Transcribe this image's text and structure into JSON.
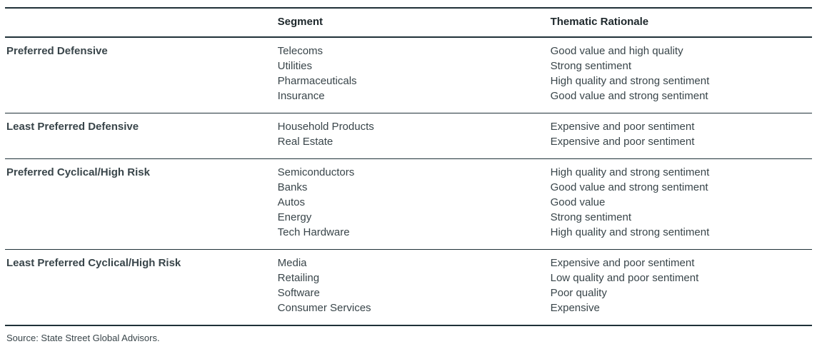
{
  "table": {
    "columns": [
      "",
      "Segment",
      "Thematic Rationale"
    ],
    "rows": [
      {
        "category": "Preferred Defensive",
        "segments": [
          "Telecoms",
          "Utilities",
          "Pharmaceuticals",
          "Insurance"
        ],
        "rationales": [
          "Good value and high quality",
          "Strong sentiment",
          "High quality and strong sentiment",
          "Good value and strong sentiment"
        ]
      },
      {
        "category": "Least Preferred Defensive",
        "segments": [
          "Household Products",
          "Real Estate"
        ],
        "rationales": [
          "Expensive and poor sentiment",
          "Expensive and poor sentiment"
        ]
      },
      {
        "category": "Preferred Cyclical/High Risk",
        "segments": [
          "Semiconductors",
          "Banks",
          "Autos",
          "Energy",
          "Tech Hardware"
        ],
        "rationales": [
          "High quality and strong sentiment",
          "Good value and strong sentiment",
          "Good value",
          "Strong sentiment",
          "High quality and strong sentiment"
        ]
      },
      {
        "category": "Least Preferred Cyclical/High Risk",
        "segments": [
          "Media",
          "Retailing",
          "Software",
          "Consumer Services"
        ],
        "rationales": [
          "Expensive and poor sentiment",
          "Low quality and poor sentiment",
          "Poor quality",
          "Expensive"
        ]
      }
    ]
  },
  "source": "Source: State Street Global Advisors.",
  "colors": {
    "rule": "#1f3138",
    "heading_text": "#1d272b",
    "body_text": "#39454a"
  }
}
